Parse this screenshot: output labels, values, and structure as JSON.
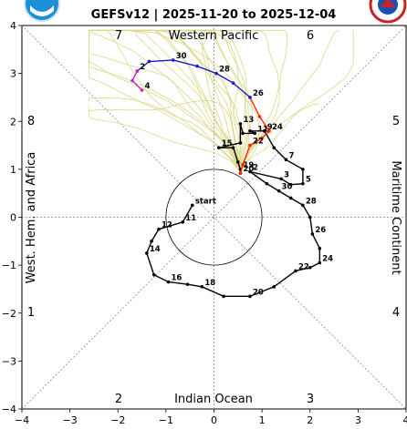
{
  "chart_data": {
    "type": "line",
    "title": "GEFSv12 | 2025-11-20 to 2025-12-04",
    "xlim": [
      -4,
      4
    ],
    "ylim": [
      -4,
      4
    ],
    "xticks": [
      "−4",
      "−3",
      "−2",
      "−1",
      "0",
      "1",
      "2",
      "3",
      "4"
    ],
    "yticks": [
      "−4",
      "−3",
      "−2",
      "−1",
      "0",
      "1",
      "2",
      "3",
      "4"
    ],
    "phases": [
      "1",
      "2",
      "3",
      "4",
      "5",
      "6",
      "7",
      "8"
    ],
    "regions": {
      "top": "Western Pacific",
      "bottom": "Indian Ocean",
      "left": "West. Hem. and Africa",
      "right": "Maritime Continent"
    },
    "unit_circle_radius": 1,
    "colors": {
      "observed": "#000000",
      "forecast_near": "#ff2200",
      "forecast_mid": "#1a1acc",
      "forecast_late": "#cc22cc",
      "ensemble": "#d9d98a",
      "logo_left": "#1d8fd6",
      "logo_right": "#cc2222"
    },
    "series": [
      {
        "role": "observed",
        "points": [
          {
            "x": -0.45,
            "y": 0.25,
            "label": "start"
          },
          {
            "x": -0.65,
            "y": -0.1,
            "label": "11"
          },
          {
            "x": -1.15,
            "y": -0.25,
            "label": "12"
          },
          {
            "x": -1.3,
            "y": -0.5,
            "label": ""
          },
          {
            "x": -1.4,
            "y": -0.75,
            "label": "14"
          },
          {
            "x": -1.25,
            "y": -1.2,
            "label": ""
          },
          {
            "x": -0.95,
            "y": -1.35,
            "label": "16"
          },
          {
            "x": -0.55,
            "y": -1.4,
            "label": ""
          },
          {
            "x": -0.25,
            "y": -1.45,
            "label": "18"
          },
          {
            "x": 0.2,
            "y": -1.65,
            "label": ""
          },
          {
            "x": 0.75,
            "y": -1.65,
            "label": "20"
          },
          {
            "x": 1.25,
            "y": -1.45,
            "label": ""
          },
          {
            "x": 1.7,
            "y": -1.12,
            "label": "22"
          },
          {
            "x": 2.0,
            "y": -1.05,
            "label": ""
          },
          {
            "x": 2.2,
            "y": -0.95,
            "label": "24"
          },
          {
            "x": 2.2,
            "y": -0.65,
            "label": ""
          },
          {
            "x": 2.05,
            "y": -0.35,
            "label": "26"
          },
          {
            "x": 2.0,
            "y": 0.0,
            "label": ""
          },
          {
            "x": 1.85,
            "y": 0.25,
            "label": "28"
          },
          {
            "x": 1.6,
            "y": 0.4,
            "label": ""
          },
          {
            "x": 1.35,
            "y": 0.55,
            "label": "30"
          },
          {
            "x": 1.1,
            "y": 0.7,
            "label": ""
          },
          {
            "x": 0.75,
            "y": 0.95,
            "label": "2"
          },
          {
            "x": 1.4,
            "y": 0.8,
            "label": "3"
          },
          {
            "x": 1.6,
            "y": 0.68,
            "label": ""
          },
          {
            "x": 1.85,
            "y": 0.7,
            "label": "5"
          },
          {
            "x": 1.85,
            "y": 1.0,
            "label": ""
          },
          {
            "x": 1.5,
            "y": 1.2,
            "label": "7"
          },
          {
            "x": 1.25,
            "y": 1.45,
            "label": ""
          },
          {
            "x": 1.05,
            "y": 1.8,
            "label": "9"
          },
          {
            "x": 0.75,
            "y": 1.8,
            "label": ""
          },
          {
            "x": 0.85,
            "y": 1.75,
            "label": "11"
          },
          {
            "x": 0.6,
            "y": 1.75,
            "label": ""
          },
          {
            "x": 0.55,
            "y": 1.95,
            "label": "13"
          },
          {
            "x": 0.55,
            "y": 1.55,
            "label": ""
          },
          {
            "x": 0.1,
            "y": 1.45,
            "label": "15"
          },
          {
            "x": 0.4,
            "y": 1.45,
            "label": ""
          },
          {
            "x": 0.5,
            "y": 1.15,
            "label": ""
          },
          {
            "x": 0.55,
            "y": 1.0,
            "label": "19"
          },
          {
            "x": 0.55,
            "y": 0.92,
            "label": "20"
          }
        ]
      },
      {
        "role": "forecast_near",
        "points": [
          {
            "x": 0.55,
            "y": 0.92,
            "label": ""
          },
          {
            "x": 0.6,
            "y": 1.1,
            "label": ""
          },
          {
            "x": 0.75,
            "y": 1.5,
            "label": "22"
          },
          {
            "x": 1.0,
            "y": 1.65,
            "label": ""
          },
          {
            "x": 1.15,
            "y": 1.8,
            "label": "24"
          },
          {
            "x": 0.95,
            "y": 2.1,
            "label": ""
          },
          {
            "x": 0.75,
            "y": 2.5,
            "label": "26"
          }
        ]
      },
      {
        "role": "forecast_mid",
        "points": [
          {
            "x": 0.75,
            "y": 2.5,
            "label": ""
          },
          {
            "x": 0.4,
            "y": 2.8,
            "label": ""
          },
          {
            "x": 0.05,
            "y": 3.0,
            "label": "28"
          },
          {
            "x": -0.35,
            "y": 3.15,
            "label": ""
          },
          {
            "x": -0.85,
            "y": 3.28,
            "label": "30"
          },
          {
            "x": -1.35,
            "y": 3.25,
            "label": ""
          },
          {
            "x": -1.6,
            "y": 3.05,
            "label": "2"
          }
        ]
      },
      {
        "role": "forecast_late",
        "points": [
          {
            "x": -1.6,
            "y": 3.05,
            "label": ""
          },
          {
            "x": -1.7,
            "y": 2.85,
            "label": ""
          },
          {
            "x": -1.5,
            "y": 2.65,
            "label": "4"
          }
        ]
      }
    ]
  },
  "logos": [
    "noaa-logo",
    "nws-logo"
  ]
}
